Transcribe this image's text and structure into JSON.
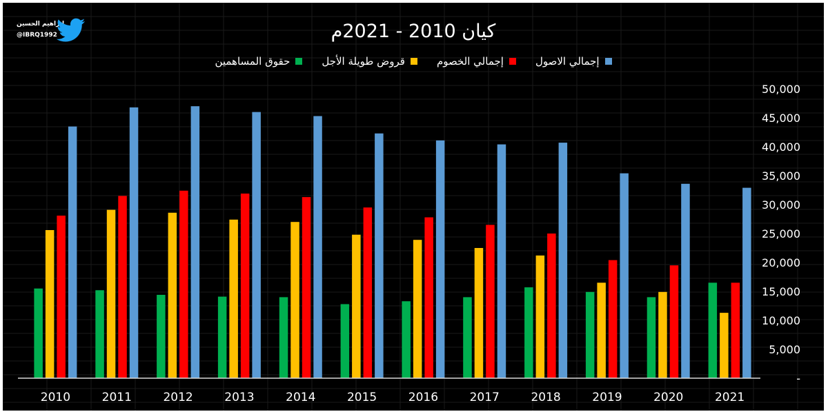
{
  "brand": {
    "name": "إبراهيم الحسين",
    "handle": "@IBRQ1992",
    "icon": "twitter-bird-icon"
  },
  "chart_data": {
    "type": "bar",
    "title": "كيان 2010 - 2021م",
    "categories": [
      "2010",
      "2011",
      "2012",
      "2013",
      "2014",
      "2015",
      "2016",
      "2017",
      "2018",
      "2019",
      "2020",
      "2021"
    ],
    "series": [
      {
        "name": "حقوق المساهمين",
        "color": "#00b050",
        "values": [
          15500,
          15200,
          14400,
          14100,
          14000,
          12800,
          13300,
          14000,
          15700,
          14900,
          14000,
          16500
        ]
      },
      {
        "name": "قروض طويلة الأجل",
        "color": "#ffc000",
        "values": [
          25600,
          29100,
          28600,
          27400,
          27000,
          24800,
          23900,
          22500,
          21200,
          16500,
          14900,
          11300
        ]
      },
      {
        "name": "إجمالي الخصوم",
        "color": "#ff0000",
        "values": [
          28100,
          31500,
          32400,
          31900,
          31300,
          29500,
          27800,
          26500,
          25000,
          20400,
          19500,
          16500
        ]
      },
      {
        "name": "إجمالي الاصول",
        "color": "#5b9bd5",
        "values": [
          43500,
          46800,
          47000,
          46000,
          45300,
          42300,
          41100,
          40400,
          40700,
          35400,
          33600,
          32900
        ]
      }
    ],
    "legend_order_rtl": [
      3,
      2,
      1,
      0
    ],
    "y_ticks": [
      "-",
      "5,000",
      "10,000",
      "15,000",
      "20,000",
      "25,000",
      "30,000",
      "35,000",
      "40,000",
      "45,000",
      "50,000"
    ],
    "ylim": [
      0,
      50000
    ],
    "xlabel": "",
    "ylabel": "",
    "legend_position": "top",
    "y_axis_side": "right",
    "grid": false
  }
}
